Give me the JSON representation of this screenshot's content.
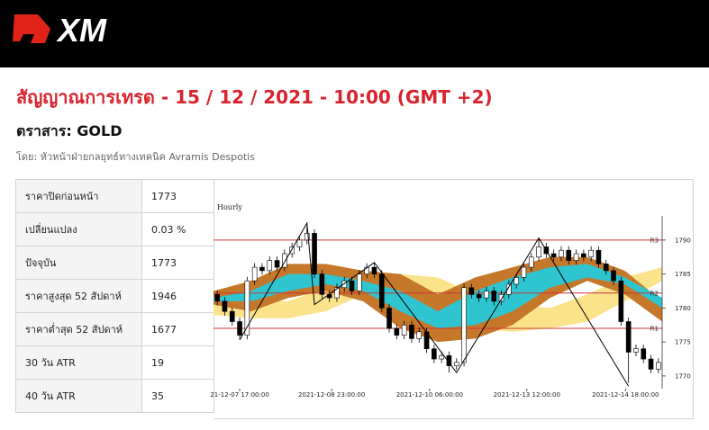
{
  "header": {
    "logo": "XM"
  },
  "title": "สัญญาณการเทรด - 15 / 12 / 2021 - 10:00 (GMT +2)",
  "instrument": "ตราสาร: GOLD",
  "author": "โดย: หัวหน้าฝ่ายกลยุทธ์ทางเทคนิค Avramis Despotis",
  "table": {
    "rows": [
      [
        "ราคาปิดก่อนหน้า",
        "1773"
      ],
      [
        "เปลี่ยนแปลง",
        "0.03 %"
      ],
      [
        "ปัจจุบัน",
        "1773"
      ],
      [
        "ราคาสูงสุด 52 สัปดาห์",
        "1946"
      ],
      [
        "ราคาต่ำสุด 52 สัปดาห์",
        "1677"
      ],
      [
        "30 วัน ATR",
        "19"
      ],
      [
        "40 วัน ATR",
        "35"
      ]
    ]
  },
  "chart_data": {
    "type": "candlestick",
    "title": "Hourly",
    "xlim": [
      -0.5,
      59.5
    ],
    "xticks": [
      {
        "value": 3.0,
        "label": "21-12-07 17:00:00"
      },
      {
        "value": 15.3,
        "label": "2021-12-08 23:00:00"
      },
      {
        "value": 28.4,
        "label": "2021-12-10 06:00:00"
      },
      {
        "value": 41.4,
        "label": "2021-12-13 12:00:00"
      },
      {
        "value": 54.6,
        "label": "2021-12-14 18:00:00"
      }
    ],
    "ylim": [
      1768.4,
      1792.9
    ],
    "yticks": [
      1770,
      1775,
      1780,
      1785,
      1790
    ],
    "up_color": "#ffffff",
    "down_color": "#000000",
    "x": [
      0,
      1,
      2,
      3,
      4,
      5,
      6,
      7,
      8,
      9,
      10,
      11,
      12,
      13,
      14,
      15,
      16,
      17,
      18,
      19,
      20,
      21,
      22,
      23,
      24,
      25,
      26,
      27,
      28,
      29,
      30,
      31,
      32,
      33,
      34,
      35,
      36,
      37,
      38,
      39,
      40,
      41,
      42,
      43,
      44,
      45,
      46,
      47,
      48,
      49,
      50,
      51,
      52,
      53,
      54,
      55,
      56,
      57,
      58,
      59
    ],
    "open": [
      1782,
      1781,
      1779.5,
      1778,
      1776,
      1784,
      1786,
      1785.5,
      1787,
      1786,
      1788,
      1789,
      1790,
      1791,
      1785,
      1782,
      1781.5,
      1783,
      1784,
      1782.5,
      1785,
      1786,
      1785,
      1780,
      1777,
      1776,
      1777.5,
      1775.5,
      1776.5,
      1774,
      1772.5,
      1773,
      1771.5,
      1772,
      1783,
      1782,
      1781.5,
      1782.5,
      1781,
      1782,
      1783.5,
      1784.5,
      1786,
      1787.5,
      1789,
      1788,
      1787.5,
      1788.5,
      1787,
      1788,
      1787.5,
      1788.5,
      1786.5,
      1785.5,
      1784,
      1778,
      1773.5,
      1774,
      1772.5,
      1771
    ],
    "high": [
      1782.6,
      1781.6,
      1780.1,
      1778.6,
      1784.6,
      1786.6,
      1786.6,
      1787.6,
      1787.6,
      1788.6,
      1789.6,
      1790.6,
      1792,
      1791.6,
      1785.6,
      1782.6,
      1783.6,
      1784.6,
      1784.6,
      1785.6,
      1786.6,
      1786.6,
      1785.6,
      1780.6,
      1777.6,
      1778.1,
      1778.1,
      1777.1,
      1777.1,
      1774.6,
      1773.6,
      1773.6,
      1772.6,
      1783.6,
      1783.6,
      1782.6,
      1783.1,
      1783.1,
      1782.6,
      1784.1,
      1785.1,
      1786.6,
      1788.1,
      1790.2,
      1789.6,
      1788.6,
      1789.1,
      1789.1,
      1788.6,
      1788.6,
      1789.1,
      1789.1,
      1787.1,
      1786.1,
      1784.6,
      1778.6,
      1774.6,
      1774.6,
      1773.1,
      1772.6
    ],
    "low": [
      1780.4,
      1778.9,
      1777.4,
      1775.4,
      1775.4,
      1783.4,
      1784.9,
      1784.9,
      1785.4,
      1785.4,
      1787.4,
      1788.4,
      1789.4,
      1784.4,
      1781.4,
      1780.9,
      1780.9,
      1782.4,
      1781.9,
      1781.9,
      1784.4,
      1784.4,
      1779.4,
      1776.4,
      1775.4,
      1775.4,
      1774.9,
      1774.9,
      1773.4,
      1771.9,
      1771.9,
      1770.5,
      1770.9,
      1771.4,
      1781.4,
      1780.9,
      1780.9,
      1780.4,
      1780.4,
      1781.4,
      1782.9,
      1783.9,
      1785.4,
      1786.9,
      1787.4,
      1786.9,
      1786.9,
      1786.4,
      1786.4,
      1786.9,
      1786.9,
      1785.9,
      1784.9,
      1783.4,
      1777.4,
      1769,
      1772.9,
      1771.9,
      1770.4,
      1770.4
    ],
    "close": [
      1781,
      1779.5,
      1778,
      1776,
      1784,
      1786,
      1785.5,
      1787,
      1786,
      1788,
      1789,
      1790,
      1791,
      1785,
      1782,
      1781.5,
      1783,
      1784,
      1782.5,
      1785,
      1786,
      1785,
      1780,
      1777,
      1776,
      1777.5,
      1775.5,
      1776.5,
      1774,
      1772.5,
      1773,
      1771.5,
      1772,
      1783,
      1782,
      1781.5,
      1782.5,
      1781,
      1782,
      1783.5,
      1784.5,
      1786,
      1787.5,
      1789,
      1788,
      1787.5,
      1788.5,
      1787,
      1788,
      1787.5,
      1788.5,
      1786.5,
      1785.5,
      1784,
      1778,
      1773.5,
      1774,
      1772.5,
      1771,
      1772
    ],
    "bands": [
      {
        "color": "#fbe38c",
        "x": [
          -0.5,
          4.5,
          9.5,
          14.5,
          19.5,
          24.5,
          29.5,
          34.5,
          39.5,
          44.5,
          49.5,
          54.5,
          59.5
        ],
        "upper": [
          1781.5,
          1781,
          1781,
          1783,
          1784.5,
          1785,
          1784.5,
          1782,
          1780.5,
          1780,
          1782,
          1784.5,
          1786
        ],
        "lower": [
          1779,
          1778.5,
          1778.5,
          1779.5,
          1782,
          1782,
          1779.5,
          1777,
          1776.5,
          1777,
          1778,
          1781,
          1784
        ]
      },
      {
        "color": "#c6782a",
        "x": [
          -0.5,
          4.5,
          9.5,
          14.5,
          19.5,
          24.5,
          29.5,
          34.5,
          39.5,
          44.5,
          49.5,
          54.5,
          59.5
        ],
        "upper": [
          1782.5,
          1784,
          1786.5,
          1786.5,
          1785.5,
          1785,
          1782,
          1784.5,
          1786,
          1787.5,
          1787.5,
          1785.5,
          1781
        ],
        "lower": [
          1780.5,
          1779.5,
          1781.5,
          1782.5,
          1781,
          1777,
          1775,
          1775.5,
          1777.5,
          1781.5,
          1784,
          1782,
          1778
        ]
      },
      {
        "color": "#2ec4d0",
        "x": [
          -0.5,
          4.5,
          9.5,
          14.5,
          19.5,
          24.5,
          29.5,
          34.5,
          39.5,
          44.5,
          49.5,
          54.5,
          59.5
        ],
        "upper": [
          1781.5,
          1782.5,
          1785,
          1785,
          1784,
          1782.5,
          1779.5,
          1782.5,
          1784.5,
          1786,
          1786.5,
          1784.5,
          1781.5
        ],
        "lower": [
          1781,
          1781,
          1782.5,
          1783.5,
          1782.5,
          1779.5,
          1777,
          1777.5,
          1779.5,
          1783,
          1784.5,
          1783.5,
          1780
        ]
      }
    ],
    "zigzag": {
      "color": "#000000",
      "x": [
        3,
        12,
        13,
        21,
        32,
        43,
        55
      ],
      "y": [
        1775.3,
        1792.5,
        1780.5,
        1786.7,
        1770.5,
        1790.3,
        1768.5
      ]
    },
    "levels": [
      {
        "label": "R3",
        "value": 1790,
        "color": "#cc3333"
      },
      {
        "label": "R2",
        "value": 1782.2,
        "color": "#cc3333"
      },
      {
        "label": "R1",
        "value": 1777,
        "color": "#cc3333"
      }
    ]
  }
}
